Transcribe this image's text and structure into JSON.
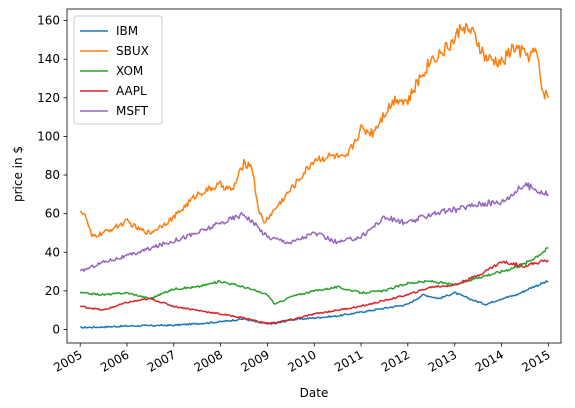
{
  "chart_data": {
    "type": "line",
    "title": "",
    "xlabel": "Date",
    "ylabel": "price in $",
    "xlim": [
      "2004-09-20",
      "2015-04-10"
    ],
    "ylim": [
      -7,
      166
    ],
    "x_ticks": [
      "2005",
      "2006",
      "2007",
      "2008",
      "2009",
      "2010",
      "2011",
      "2012",
      "2013",
      "2014",
      "2015"
    ],
    "y_ticks": [
      0,
      20,
      40,
      60,
      80,
      100,
      120,
      140,
      160
    ],
    "grid": false,
    "legend": "top-left",
    "series": [
      {
        "name": "IBM",
        "color": "#1f77b4",
        "points": [
          [
            "2005-01-01",
            1
          ],
          [
            "2005-07-01",
            1.3
          ],
          [
            "2006-01-01",
            1.8
          ],
          [
            "2006-07-01",
            2
          ],
          [
            "2007-01-01",
            2.2
          ],
          [
            "2007-07-01",
            3
          ],
          [
            "2008-01-01",
            4
          ],
          [
            "2008-07-01",
            5.5
          ],
          [
            "2008-11-01",
            3.5
          ],
          [
            "2009-03-01",
            3
          ],
          [
            "2009-07-01",
            5
          ],
          [
            "2010-01-01",
            6
          ],
          [
            "2010-07-01",
            7
          ],
          [
            "2011-01-01",
            9
          ],
          [
            "2011-07-01",
            11
          ],
          [
            "2012-01-01",
            13
          ],
          [
            "2012-05-01",
            18
          ],
          [
            "2012-09-01",
            16
          ],
          [
            "2013-01-01",
            19
          ],
          [
            "2013-06-01",
            15
          ],
          [
            "2013-09-01",
            13
          ],
          [
            "2014-01-01",
            16
          ],
          [
            "2014-05-01",
            18
          ],
          [
            "2014-09-01",
            22
          ],
          [
            "2015-01-01",
            25
          ]
        ]
      },
      {
        "name": "SBUX",
        "color": "#ff7f0e",
        "points": [
          [
            "2005-01-01",
            62
          ],
          [
            "2005-02-15",
            58
          ],
          [
            "2005-04-01",
            48
          ],
          [
            "2005-07-01",
            50
          ],
          [
            "2006-01-01",
            56
          ],
          [
            "2006-04-01",
            52
          ],
          [
            "2006-07-01",
            50
          ],
          [
            "2007-01-01",
            58
          ],
          [
            "2007-04-01",
            64
          ],
          [
            "2007-07-01",
            70
          ],
          [
            "2008-01-01",
            75
          ],
          [
            "2008-04-01",
            72
          ],
          [
            "2008-07-01",
            86
          ],
          [
            "2008-09-01",
            85
          ],
          [
            "2008-10-15",
            65
          ],
          [
            "2008-12-01",
            55
          ],
          [
            "2009-02-01",
            60
          ],
          [
            "2009-06-01",
            70
          ],
          [
            "2009-10-01",
            80
          ],
          [
            "2010-01-01",
            88
          ],
          [
            "2010-06-01",
            90
          ],
          [
            "2010-09-01",
            88
          ],
          [
            "2011-01-01",
            104
          ],
          [
            "2011-04-01",
            102
          ],
          [
            "2011-07-01",
            112
          ],
          [
            "2011-10-01",
            120
          ],
          [
            "2012-01-01",
            118
          ],
          [
            "2012-04-01",
            130
          ],
          [
            "2012-07-01",
            140
          ],
          [
            "2012-10-01",
            144
          ],
          [
            "2013-01-01",
            150
          ],
          [
            "2013-03-01",
            158
          ],
          [
            "2013-06-01",
            152
          ],
          [
            "2013-09-01",
            140
          ],
          [
            "2014-01-01",
            138
          ],
          [
            "2014-04-01",
            146
          ],
          [
            "2014-08-01",
            142
          ],
          [
            "2014-10-01",
            144
          ],
          [
            "2014-11-15",
            124
          ],
          [
            "2015-01-01",
            120
          ]
        ]
      },
      {
        "name": "XOM",
        "color": "#2ca02c",
        "points": [
          [
            "2005-01-01",
            19
          ],
          [
            "2005-07-01",
            18
          ],
          [
            "2006-01-01",
            19
          ],
          [
            "2006-07-01",
            16
          ],
          [
            "2007-01-01",
            21
          ],
          [
            "2007-07-01",
            22
          ],
          [
            "2008-01-01",
            25
          ],
          [
            "2008-07-01",
            22
          ],
          [
            "2009-01-01",
            18
          ],
          [
            "2009-03-01",
            13
          ],
          [
            "2009-07-01",
            17
          ],
          [
            "2010-01-01",
            20
          ],
          [
            "2010-07-01",
            22
          ],
          [
            "2011-01-01",
            19
          ],
          [
            "2011-07-01",
            20
          ],
          [
            "2012-01-01",
            24
          ],
          [
            "2012-07-01",
            25
          ],
          [
            "2013-01-01",
            23
          ],
          [
            "2013-07-01",
            27
          ],
          [
            "2014-01-01",
            30
          ],
          [
            "2014-07-01",
            34
          ],
          [
            "2015-01-01",
            42
          ]
        ]
      },
      {
        "name": "AAPL",
        "color": "#d62728",
        "points": [
          [
            "2005-01-01",
            12
          ],
          [
            "2005-07-01",
            10
          ],
          [
            "2006-01-01",
            14
          ],
          [
            "2006-07-01",
            16
          ],
          [
            "2007-01-01",
            12
          ],
          [
            "2007-07-01",
            10
          ],
          [
            "2008-01-01",
            8
          ],
          [
            "2008-07-01",
            6
          ],
          [
            "2009-01-01",
            3
          ],
          [
            "2009-07-01",
            5
          ],
          [
            "2010-01-01",
            8
          ],
          [
            "2010-07-01",
            10
          ],
          [
            "2011-01-01",
            12
          ],
          [
            "2011-07-01",
            15
          ],
          [
            "2012-01-01",
            18
          ],
          [
            "2012-07-01",
            22
          ],
          [
            "2013-01-01",
            23
          ],
          [
            "2013-07-01",
            28
          ],
          [
            "2014-01-01",
            35
          ],
          [
            "2014-07-01",
            33
          ],
          [
            "2015-01-01",
            36
          ]
        ]
      },
      {
        "name": "MSFT",
        "color": "#9467bd",
        "points": [
          [
            "2005-01-01",
            30
          ],
          [
            "2005-07-01",
            35
          ],
          [
            "2006-01-01",
            38
          ],
          [
            "2006-07-01",
            42
          ],
          [
            "2007-01-01",
            46
          ],
          [
            "2007-07-01",
            50
          ],
          [
            "2008-01-01",
            55
          ],
          [
            "2008-07-01",
            60
          ],
          [
            "2009-01-01",
            48
          ],
          [
            "2009-07-01",
            45
          ],
          [
            "2010-01-01",
            50
          ],
          [
            "2010-07-01",
            45
          ],
          [
            "2011-01-01",
            48
          ],
          [
            "2011-07-01",
            58
          ],
          [
            "2012-01-01",
            55
          ],
          [
            "2012-07-01",
            60
          ],
          [
            "2013-01-01",
            62
          ],
          [
            "2013-07-01",
            65
          ],
          [
            "2014-01-01",
            66
          ],
          [
            "2014-07-01",
            75
          ],
          [
            "2015-01-01",
            70
          ]
        ]
      }
    ]
  }
}
